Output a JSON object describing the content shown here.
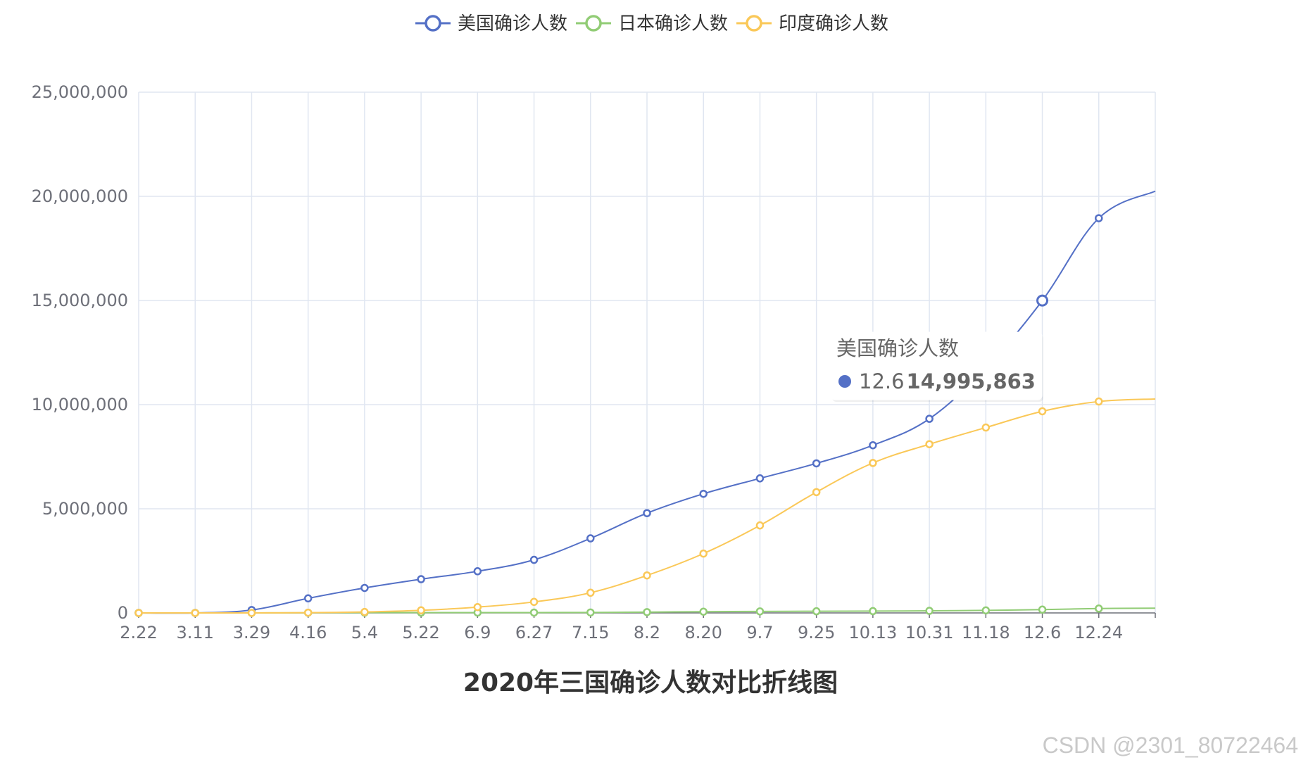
{
  "chart_data": {
    "type": "line",
    "title": "2020年三国确诊人数对比折线图",
    "categories": [
      "2.22",
      "3.11",
      "3.29",
      "4.16",
      "5.4",
      "5.22",
      "6.9",
      "6.27",
      "7.15",
      "8.2",
      "8.20",
      "9.7",
      "9.25",
      "10.13",
      "10.31",
      "11.18",
      "12.6",
      "12.24"
    ],
    "ylim": [
      0,
      25000000
    ],
    "yticks": [
      "0",
      "5,000,000",
      "10,000,000",
      "15,000,000",
      "20,000,000",
      "25,000,000"
    ],
    "grid": true,
    "legend_position": "top-center",
    "series": [
      {
        "name": "美国确诊人数",
        "color": "#5470c6",
        "values": [
          20,
          1300,
          140000,
          700000,
          1200000,
          1620000,
          2000000,
          2550000,
          3580000,
          4790000,
          5720000,
          6460000,
          7180000,
          8050000,
          9320000,
          11780000,
          14995863,
          18950000
        ],
        "last_value": 20250000
      },
      {
        "name": "日本确诊人数",
        "color": "#91cc75",
        "values": [
          100,
          600,
          1900,
          9300,
          15000,
          16500,
          17500,
          18500,
          23000,
          39000,
          60000,
          73000,
          80000,
          88000,
          100000,
          122000,
          160000,
          210000
        ],
        "last_value": 230000
      },
      {
        "name": "印度确诊人数",
        "color": "#fac858",
        "values": [
          3,
          60,
          1000,
          13000,
          46000,
          125000,
          280000,
          530000,
          970000,
          1800000,
          2850000,
          4200000,
          5800000,
          7200000,
          8100000,
          8900000,
          9680000,
          10150000
        ],
        "last_value": 10270000
      }
    ],
    "tooltip": {
      "series": "美国确诊人数",
      "category": "12.6",
      "value": "14,995,863"
    }
  },
  "watermark": "CSDN @2301_80722464"
}
